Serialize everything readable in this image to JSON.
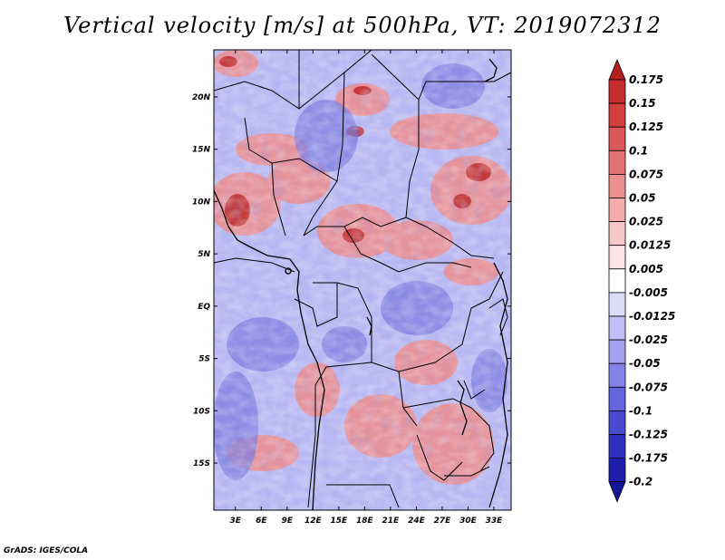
{
  "title": "Vertical velocity [m/s] at 500hPa, VT: 2019072312",
  "credit": "GrADS: IGES/COLA",
  "map": {
    "lat_labels": [
      "20N",
      "15N",
      "10N",
      "5N",
      "EQ",
      "5S",
      "10S",
      "15S"
    ],
    "lat_values": [
      20,
      15,
      10,
      5,
      0,
      -5,
      -10,
      -15
    ],
    "lon_labels": [
      "3E",
      "6E",
      "9E",
      "12E",
      "15E",
      "18E",
      "21E",
      "24E",
      "27E",
      "30E",
      "33E"
    ],
    "lon_values": [
      3,
      6,
      9,
      12,
      15,
      18,
      21,
      24,
      27,
      30,
      33
    ],
    "lon_range": [
      0.5,
      35
    ],
    "lat_range": [
      -19.5,
      24.5
    ]
  },
  "colorbar": {
    "labels": [
      "0.175",
      "0.15",
      "0.125",
      "0.1",
      "0.075",
      "0.05",
      "0.025",
      "0.0125",
      "0.005",
      "-0.005",
      "-0.0125",
      "-0.025",
      "-0.05",
      "-0.075",
      "-0.1",
      "-0.125",
      "-0.175",
      "-0.2"
    ],
    "colors": [
      "#b41e1e",
      "#c42e2e",
      "#d23f3f",
      "#dc5858",
      "#e57373",
      "#ee9090",
      "#f4adad",
      "#f8c8c8",
      "#fce4e4",
      "#ffffff",
      "#dcdcfa",
      "#c0c0f6",
      "#a2a2f0",
      "#8484e8",
      "#6464dc",
      "#4a4ad0",
      "#3030c0",
      "#1e1eaa",
      "#141496"
    ]
  }
}
